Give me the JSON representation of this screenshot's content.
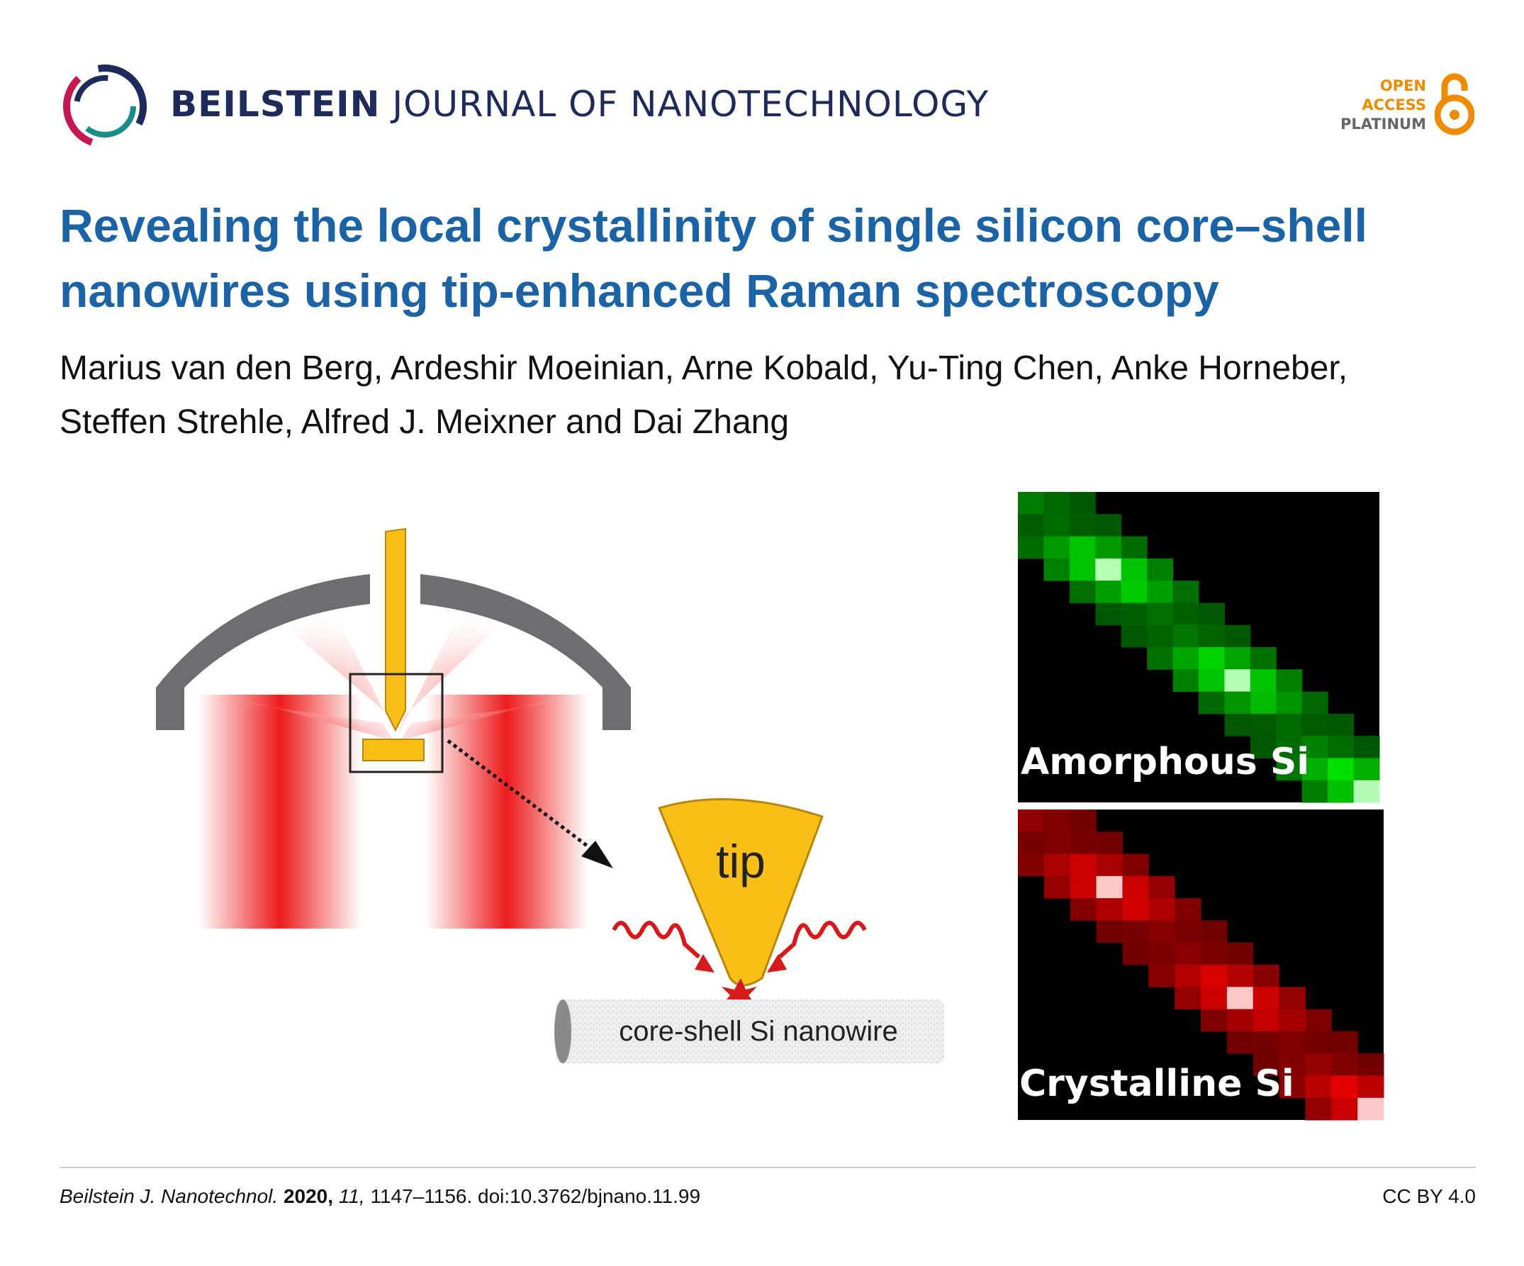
{
  "header": {
    "journal_bold": "BEILSTEIN",
    "journal_rest": " JOURNAL OF NANOTECHNOLOGY",
    "oa_line1": "OPEN",
    "oa_line2": "ACCESS",
    "oa_line3": "PLATINUM",
    "colors": {
      "journal": "#1d2a5b",
      "oa": "#f08a00",
      "title": "#1a63a6"
    }
  },
  "article": {
    "title": "Revealing the local crystallinity of single silicon core–shell nanowires using tip-enhanced Raman spectroscopy",
    "authors_line1": "Marius van den Berg, Ardeshir Moeinian, Arne Kobald, Yu-Ting Chen, Anke Horneber,",
    "authors_line2": "Steffen Strehle, Alfred J. Meixner and Dai Zhang"
  },
  "figure": {
    "tip_label": "tip",
    "nanowire_label": "core-shell Si nanowire",
    "map1_label": "Amorphous Si",
    "map2_label": "Crystalline Si"
  },
  "footer": {
    "journal_abbrev": "Beilstein J. Nanotechnol.",
    "year": "2020,",
    "volume": "11,",
    "pages_doi": "1147–1156. doi:10.3762/bjnano.11.99",
    "license": "CC BY 4.0"
  }
}
